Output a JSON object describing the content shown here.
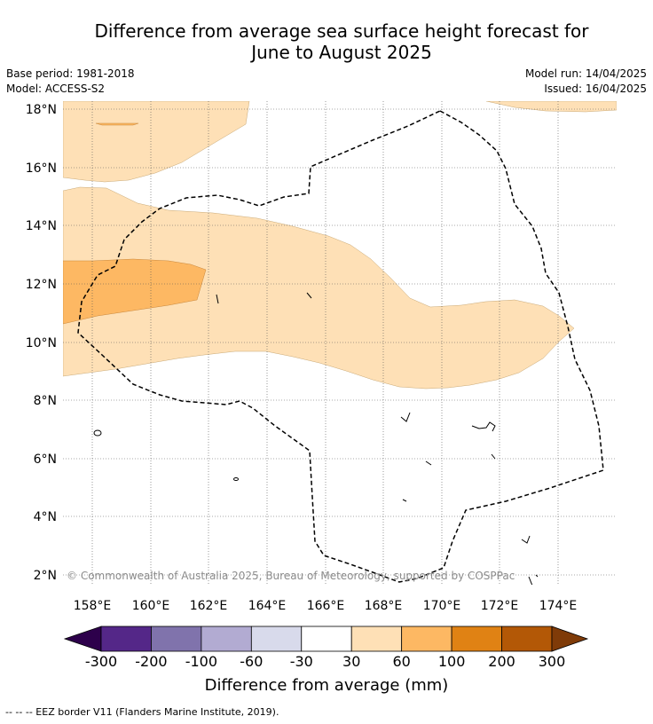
{
  "title_line1": "Difference from average sea surface height forecast for",
  "title_line2": "June to August 2025",
  "base_period": "Base period: 1981-2018",
  "model": "Model: ACCESS-S2",
  "model_run": "Model run: 14/04/2025",
  "issued": "Issued: 16/04/2025",
  "copyright": "© Commonwealth of Australia 2025, Bureau of Meteorology, supported by COSPPac",
  "map": {
    "lat_labels": [
      "18°N",
      "16°N",
      "14°N",
      "12°N",
      "10°N",
      "8°N",
      "6°N",
      "4°N",
      "2°N"
    ],
    "lon_labels": [
      "158°E",
      "160°E",
      "162°E",
      "164°E",
      "166°E",
      "168°E",
      "170°E",
      "172°E",
      "174°E"
    ]
  },
  "colorbar": {
    "label": "Difference from average (mm)",
    "ticks": [
      "-300",
      "-200",
      "-100",
      "-60",
      "-30",
      "30",
      "60",
      "100",
      "200",
      "300"
    ],
    "colors": [
      "#2d004b",
      "#542788",
      "#8073ac",
      "#b2abd2",
      "#d8daeb",
      "#ffffff",
      "#fee0b6",
      "#fdb863",
      "#e08214",
      "#b35806",
      "#7f3b08"
    ]
  },
  "footer": "--  --  -- EEZ border V11 (Flanders Marine Institute, 2019)."
}
